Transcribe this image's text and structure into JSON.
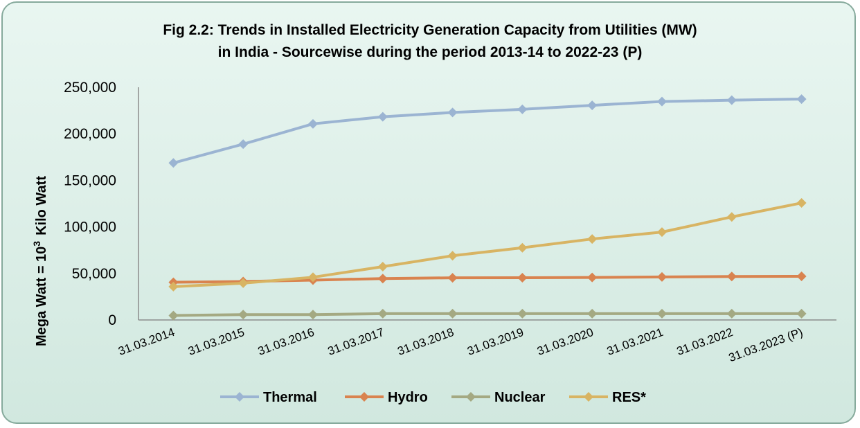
{
  "chart_data": {
    "type": "line",
    "title": "Fig 2.2: Trends in Installed Electricity Generation Capacity from Utilities (MW)",
    "subtitle": "in India - Sourcewise during the period 2013-14 to 2022-23 (P)",
    "ylabel": "Mega Watt = 10",
    "ylabel_sup": "3",
    "ylabel_suffix": "Kilo Watt",
    "xlabel": "",
    "ylim": [
      0,
      250000
    ],
    "yticks": [
      0,
      50000,
      100000,
      150000,
      200000,
      250000
    ],
    "ytick_labels": [
      "0",
      "50,000",
      "100,000",
      "150,000",
      "200,000",
      "250,000"
    ],
    "grid": false,
    "legend_position": "bottom",
    "categories": [
      "31.03.2014",
      "31.03.2015",
      "31.03.2016",
      "31.03.2017",
      "31.03.2018",
      "31.03.2019",
      "31.03.2020",
      "31.03.2021",
      "31.03.2022",
      "31.03.2023 (P)"
    ],
    "series": [
      {
        "name": "Thermal",
        "color": "#9bb4d2",
        "values": [
          168700,
          188900,
          210700,
          218300,
          222900,
          226300,
          230600,
          234700,
          236100,
          237300
        ]
      },
      {
        "name": "Hydro",
        "color": "#d9834f",
        "values": [
          40500,
          41300,
          42800,
          44500,
          45300,
          45400,
          45700,
          46200,
          46700,
          46900
        ]
      },
      {
        "name": "Nuclear",
        "color": "#a4a982",
        "values": [
          4780,
          5780,
          5780,
          6780,
          6780,
          6780,
          6780,
          6780,
          6780,
          6780
        ]
      },
      {
        "name": "RES*",
        "color": "#d8b463",
        "values": [
          35800,
          39500,
          45900,
          57300,
          69000,
          77600,
          87000,
          94400,
          110700,
          125700
        ]
      }
    ]
  }
}
